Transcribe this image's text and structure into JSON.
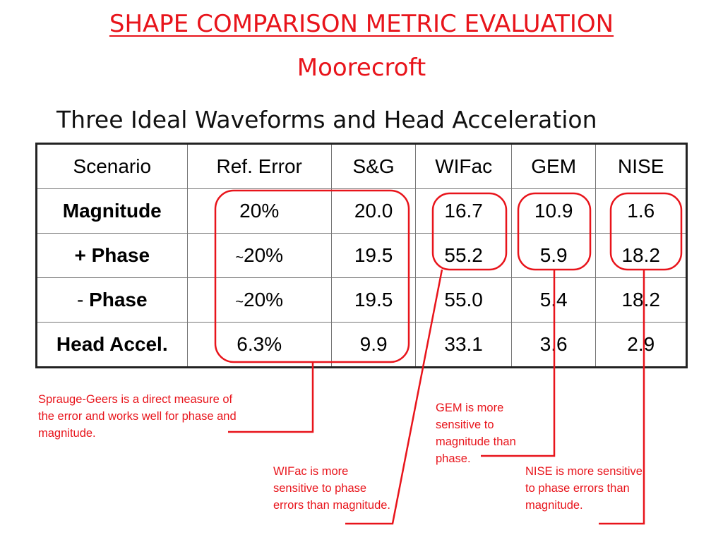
{
  "slide": {
    "title": "SHAPE COMPARISON METRIC EVALUATION",
    "subtitle": "Moorecroft",
    "heading": "Three Ideal Waveforms and Head Acceleration"
  },
  "table": {
    "headers": [
      "Scenario",
      "Ref. Error",
      "S&G",
      "WIFac",
      "GEM",
      "NISE"
    ],
    "rows": [
      {
        "scenario_prefix": "",
        "scenario": "Magnitude",
        "ref_prefix": "",
        "ref": "20%",
        "sg": "20.0",
        "wifac": "16.7",
        "gem": "10.9",
        "nise": "1.6"
      },
      {
        "scenario_prefix": "",
        "scenario": "+ Phase",
        "ref_prefix": "~",
        "ref": "20%",
        "sg": "19.5",
        "wifac": "55.2",
        "gem": "5.9",
        "nise": "18.2"
      },
      {
        "scenario_prefix": "-",
        "scenario": "Phase",
        "ref_prefix": "~",
        "ref": "20%",
        "sg": "19.5",
        "wifac": "55.0",
        "gem": "5.4",
        "nise": "18.2"
      },
      {
        "scenario_prefix": "",
        "scenario": "Head Accel.",
        "ref_prefix": "",
        "ref": "6.3%",
        "sg": "9.9",
        "wifac": "33.1",
        "gem": "3.6",
        "nise": "2.9"
      }
    ]
  },
  "annotations": {
    "sg": "Sprauge-Geers is a direct measure of the error and works well for phase and magnitude.",
    "wifac": "WIFac is more sensitive to phase errors than magnitude.",
    "gem": "GEM is more sensitive to magnitude than phase.",
    "nise": "NISE is more sensitive to phase errors than magnitude."
  },
  "colors": {
    "annotation": "#e8141b",
    "text": "#000000",
    "border": "#222222"
  }
}
